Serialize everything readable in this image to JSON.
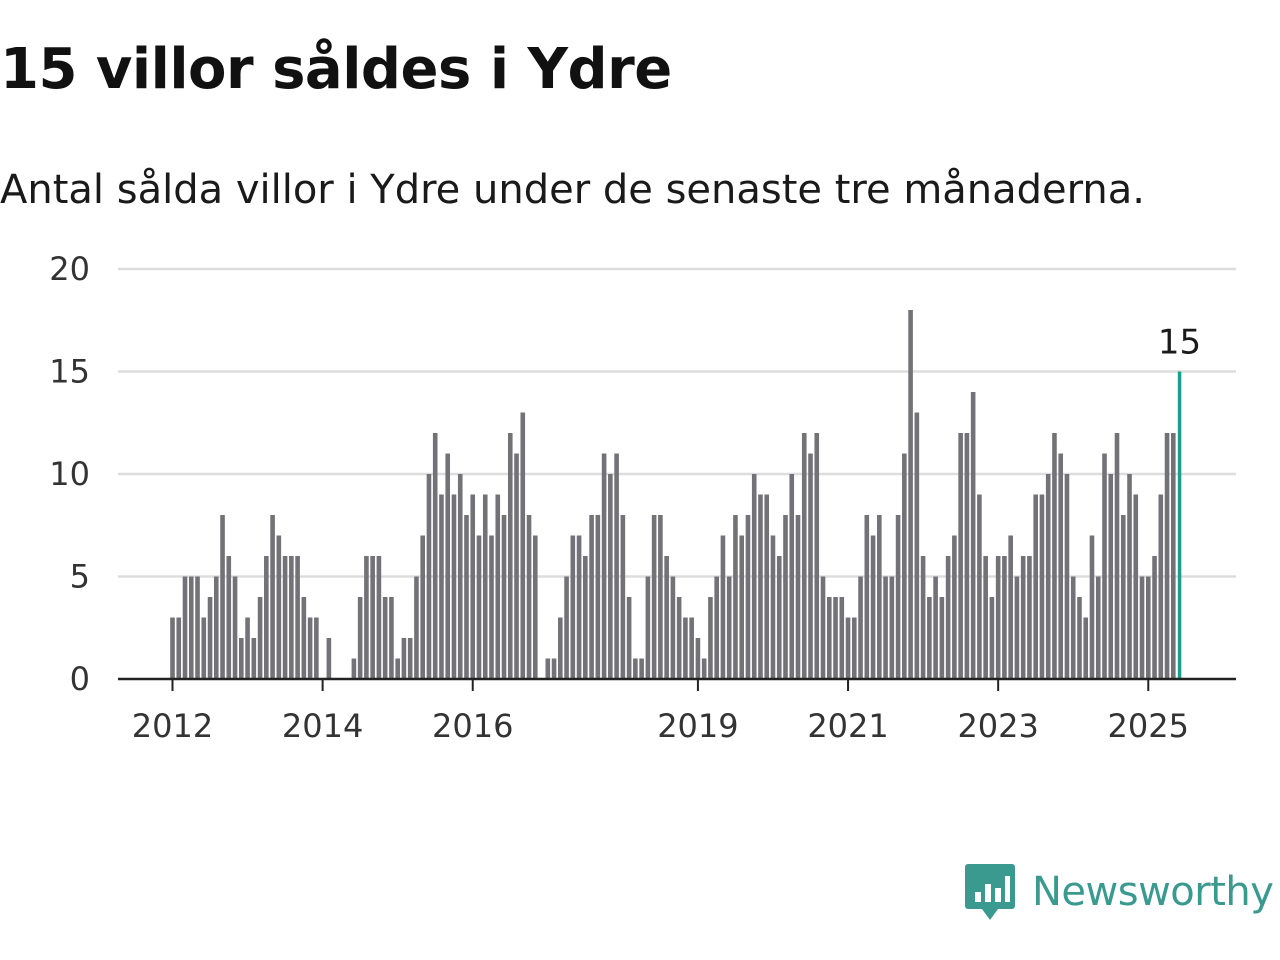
{
  "header": {
    "title": "15 villor såldes i Ydre",
    "subtitle": "Antal sålda villor i Ydre under de senaste tre månaderna."
  },
  "brand": {
    "name": "Newsworthy",
    "color": "#3a9a8f",
    "icon": "newsworthy-logo-icon"
  },
  "colors": {
    "bar": "#737277",
    "highlight": "#1a9e8f",
    "grid": "#dddddd",
    "axis": "#222222"
  },
  "chart_data": {
    "type": "bar",
    "title": "15 villor såldes i Ydre",
    "subtitle": "Antal sålda villor i Ydre under de senaste tre månaderna.",
    "xlabel": "",
    "ylabel": "",
    "ylim": [
      0,
      20
    ],
    "yticks": [
      0,
      5,
      10,
      15,
      20
    ],
    "xticks": [
      "2012",
      "2014",
      "2016",
      "2019",
      "2021",
      "2023",
      "2025"
    ],
    "xtick_index": [
      0,
      24,
      48,
      84,
      108,
      132,
      156
    ],
    "grid": true,
    "x_start": "2012-01",
    "interval": "month",
    "highlight_label": "15",
    "values": [
      3,
      3,
      5,
      5,
      5,
      3,
      4,
      5,
      8,
      6,
      5,
      2,
      3,
      2,
      4,
      6,
      8,
      7,
      6,
      6,
      6,
      4,
      3,
      3,
      0,
      2,
      0,
      0,
      0,
      1,
      4,
      6,
      6,
      6,
      4,
      4,
      1,
      2,
      2,
      5,
      7,
      10,
      12,
      9,
      11,
      9,
      10,
      8,
      9,
      7,
      9,
      7,
      9,
      8,
      12,
      11,
      13,
      8,
      7,
      0,
      1,
      1,
      3,
      5,
      7,
      7,
      6,
      8,
      8,
      11,
      10,
      11,
      8,
      4,
      1,
      1,
      5,
      8,
      8,
      6,
      5,
      4,
      3,
      3,
      2,
      1,
      4,
      5,
      7,
      5,
      8,
      7,
      8,
      10,
      9,
      9,
      7,
      6,
      8,
      10,
      8,
      12,
      11,
      12,
      5,
      4,
      4,
      4,
      3,
      3,
      5,
      8,
      7,
      8,
      5,
      5,
      8,
      11,
      18,
      13,
      6,
      4,
      5,
      4,
      6,
      7,
      12,
      12,
      14,
      9,
      6,
      4,
      6,
      6,
      7,
      5,
      6,
      6,
      9,
      9,
      10,
      12,
      11,
      10,
      5,
      4,
      3,
      7,
      5,
      11,
      10,
      12,
      8,
      10,
      9,
      5,
      5,
      6,
      9,
      12,
      12,
      15
    ]
  }
}
